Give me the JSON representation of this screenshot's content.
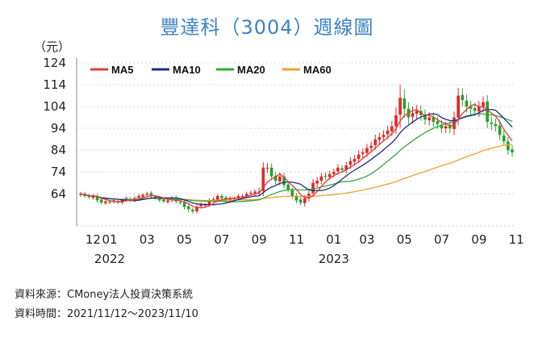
{
  "header": {
    "title": "豐達科（3004）週線圖",
    "unit": "（元）"
  },
  "footer": {
    "source": "資料來源：CMoney法人投資決策系統",
    "period": "資料時間：2021/11/12～2023/11/10"
  },
  "colors": {
    "title": "#3c84c4",
    "ma5": "#e03a3a",
    "ma10": "#1a2f8c",
    "ma20": "#2eaa3a",
    "ma60": "#f0a030",
    "up": "#e02a2a",
    "down": "#2aa02a"
  },
  "chart_data": {
    "type": "candlestick",
    "title": "豐達科（3004）週線圖",
    "ylabel": "（元）",
    "ylim": [
      53,
      124
    ],
    "yticks": [
      "124",
      "114",
      "104",
      "94",
      "84",
      "74",
      "64"
    ],
    "ytick_values": [
      124,
      114,
      104,
      94,
      84,
      74,
      64
    ],
    "xticks": [
      {
        "label": "12",
        "week": 3
      },
      {
        "label": "01",
        "week": 7
      },
      {
        "label": "03",
        "week": 16
      },
      {
        "label": "05",
        "week": 25
      },
      {
        "label": "07",
        "week": 34
      },
      {
        "label": "09",
        "week": 43
      },
      {
        "label": "11",
        "week": 52
      },
      {
        "label": "01",
        "week": 61
      },
      {
        "label": "03",
        "week": 69
      },
      {
        "label": "05",
        "week": 78
      },
      {
        "label": "07",
        "week": 87
      },
      {
        "label": "09",
        "week": 96
      },
      {
        "label": "11",
        "week": 105
      }
    ],
    "year_labels": [
      {
        "label": "2022",
        "week": 7
      },
      {
        "label": "2023",
        "week": 61
      }
    ],
    "legend": [
      "MA5",
      "MA10",
      "MA20",
      "MA60"
    ],
    "close": [
      64,
      63,
      62.5,
      63,
      61,
      60,
      60.5,
      60,
      61,
      60,
      61,
      62,
      61,
      62,
      63,
      63.5,
      64,
      63,
      62,
      61,
      60.5,
      61,
      62,
      60.5,
      60,
      58,
      57,
      56,
      58,
      59,
      59,
      61,
      61.5,
      63,
      62,
      61,
      62,
      62,
      63,
      63,
      64,
      64.5,
      65,
      65,
      76,
      76,
      72,
      70,
      72,
      68,
      66,
      63,
      61,
      60,
      62,
      64,
      69,
      70,
      72,
      72,
      73,
      74,
      76,
      75,
      77,
      79,
      80,
      82,
      83,
      85,
      86,
      89,
      90,
      91,
      93,
      95,
      100,
      108,
      103,
      99,
      101,
      102,
      100,
      98,
      99,
      97,
      96,
      94,
      95,
      94,
      99,
      109,
      107,
      104,
      103,
      102,
      104,
      106,
      97,
      96,
      95,
      91,
      88,
      84,
      83
    ],
    "volatility": [
      1.5,
      1.5,
      1.2,
      1.4,
      1.6,
      1.5,
      1.3,
      1.2,
      1.2,
      1.3,
      1.4,
      1.3,
      1.2,
      1.4,
      1.5,
      1.3,
      1.5,
      1.4,
      1.2,
      1.3,
      1.2,
      1.3,
      1.4,
      1.5,
      1.6,
      2.0,
      2.2,
      1.8,
      1.7,
      1.6,
      1.4,
      1.6,
      1.8,
      1.6,
      1.5,
      1.4,
      1.5,
      1.4,
      1.6,
      1.5,
      1.6,
      1.7,
      1.8,
      3,
      4,
      3.5,
      3,
      2.8,
      3,
      2.5,
      2.2,
      2,
      2.2,
      2,
      2.4,
      2.5,
      3,
      2.8,
      2.6,
      2.6,
      2.5,
      2.6,
      2.8,
      2.5,
      2.8,
      3,
      3,
      3.2,
      3,
      3.2,
      3.3,
      3.5,
      3.4,
      3.5,
      3.6,
      4,
      6,
      10,
      7,
      5,
      5,
      4.5,
      4.2,
      4,
      4,
      3.8,
      3.6,
      3.5,
      3.5,
      3.6,
      4.5,
      6,
      5,
      4.5,
      4.2,
      4,
      4.2,
      4.5,
      4.8,
      4.5,
      4,
      3.8,
      3.6,
      3.4,
      3.2
    ]
  }
}
